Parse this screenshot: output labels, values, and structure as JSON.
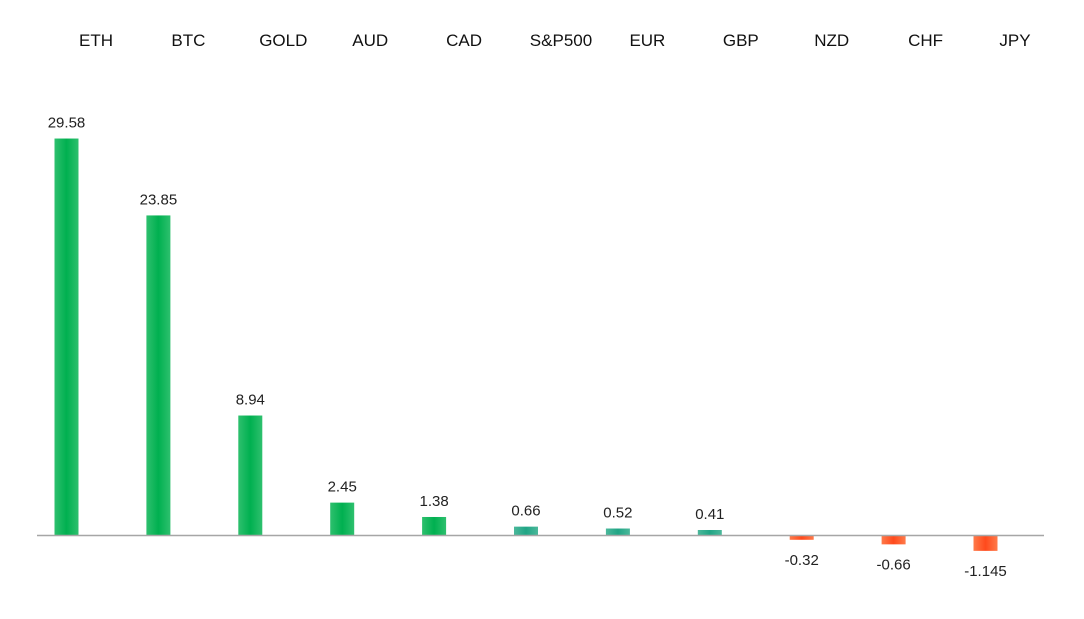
{
  "chart_data": {
    "type": "bar",
    "title": "",
    "xlabel": "",
    "ylabel": "",
    "categories": [
      "ETH",
      "BTC",
      "GOLD",
      "AUD",
      "CAD",
      "S&P500",
      "EUR",
      "GBP",
      "NZD",
      "CHF",
      "JPY"
    ],
    "values": [
      29.58,
      23.85,
      8.94,
      2.45,
      1.38,
      0.66,
      0.52,
      0.41,
      -0.32,
      -0.66,
      -1.145
    ],
    "value_labels": [
      "29.58",
      "23.85",
      "8.94",
      "2.45",
      "1.38",
      "0.66",
      "0.52",
      "0.41",
      "-0.32",
      "-0.66",
      "-1.145"
    ],
    "ylim": [
      -2.5,
      33
    ],
    "grid": false,
    "legend": "none",
    "category_label_position": "top",
    "colors": {
      "positive_green": "#00b050",
      "positive_teal": "#2aa88a",
      "negative": "#ff4a1c",
      "axis": "#a6a6a6"
    }
  }
}
